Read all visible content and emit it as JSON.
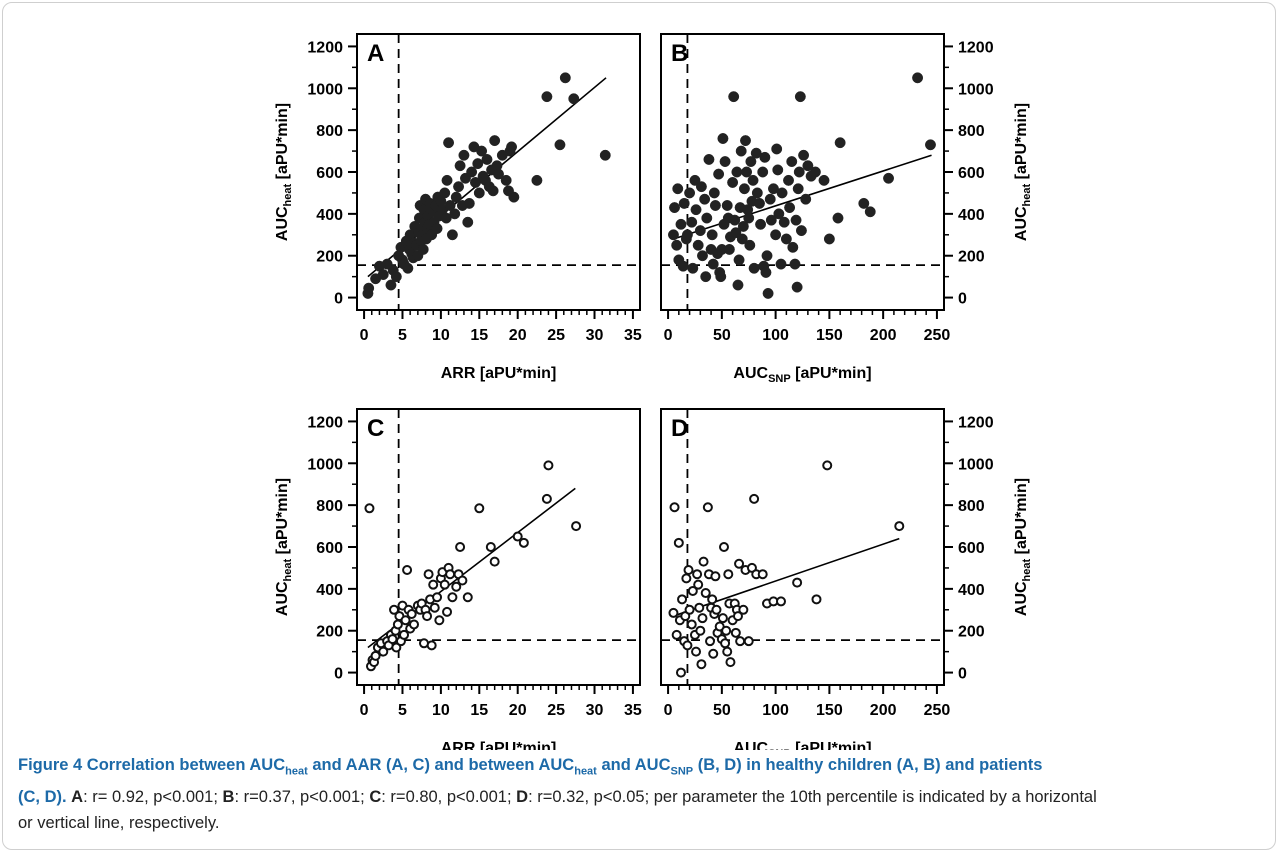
{
  "caption": {
    "figure_label": "Figure 4",
    "title_part1": "Correlation between AUC",
    "sub_heat": "heat",
    "title_part2": "and AAR (A, C) and between AUC",
    "sub_heat2": "heat",
    "title_part3": "and AUC",
    "sub_snp": "SNP",
    "title_part4": "(B, D) in healthy children (A, B) and patients",
    "title_part5": "(C, D).",
    "stat_a_label": "A",
    "stat_a": ": r= 0.92, p<0.001;",
    "stat_b_label": "B",
    "stat_b": ": r=0.37, p<0.001;",
    "stat_c_label": "C",
    "stat_c": ": r=0.80, p<0.001;",
    "stat_d_label": "D",
    "stat_d": ": r=0.32, p<0.05; per parameter the 10th percentile is indicated by a horizontal",
    "line3": "or vertical line, respectively."
  },
  "chart_data": [
    {
      "panel": "A",
      "type": "scatter",
      "marker": "filled",
      "xlabel": "ARR [aPU*min]",
      "ylabel": "AUC",
      "ylabel_sub": "heat",
      "ylabel_suffix": " [aPU*min]",
      "xlim": [
        0,
        35
      ],
      "ylim": [
        0,
        1200
      ],
      "xticks": [
        0,
        5,
        10,
        15,
        20,
        25,
        30,
        35
      ],
      "yticks": [
        0,
        200,
        400,
        600,
        800,
        1000,
        1200
      ],
      "ylabel_side": "left",
      "vline": 4.5,
      "hline": 155,
      "fit": [
        [
          0.5,
          100
        ],
        [
          31.5,
          1050
        ]
      ],
      "points": [
        [
          0.5,
          20
        ],
        [
          0.6,
          45
        ],
        [
          1.5,
          90
        ],
        [
          2,
          150
        ],
        [
          2.5,
          110
        ],
        [
          3,
          160
        ],
        [
          3.5,
          60
        ],
        [
          3.8,
          130
        ],
        [
          4.2,
          100
        ],
        [
          4.5,
          200
        ],
        [
          4.8,
          240
        ],
        [
          5,
          180
        ],
        [
          5.2,
          160
        ],
        [
          5.5,
          270
        ],
        [
          5.7,
          140
        ],
        [
          5.9,
          230
        ],
        [
          6,
          300
        ],
        [
          6.2,
          210
        ],
        [
          6.4,
          190
        ],
        [
          6.5,
          260
        ],
        [
          6.6,
          340
        ],
        [
          6.8,
          250
        ],
        [
          7,
          200
        ],
        [
          7.1,
          310
        ],
        [
          7.2,
          380
        ],
        [
          7.3,
          440
        ],
        [
          7.4,
          270
        ],
        [
          7.5,
          330
        ],
        [
          7.6,
          300
        ],
        [
          7.7,
          230
        ],
        [
          7.8,
          420
        ],
        [
          7.9,
          360
        ],
        [
          8,
          470
        ],
        [
          8.1,
          280
        ],
        [
          8.2,
          330
        ],
        [
          8.3,
          390
        ],
        [
          8.5,
          350
        ],
        [
          8.6,
          450
        ],
        [
          8.8,
          300
        ],
        [
          9,
          410
        ],
        [
          9.1,
          360
        ],
        [
          9.3,
          440
        ],
        [
          9.5,
          330
        ],
        [
          9.6,
          480
        ],
        [
          9.8,
          390
        ],
        [
          10,
          460
        ],
        [
          10.2,
          420
        ],
        [
          10.5,
          500
        ],
        [
          10.7,
          380
        ],
        [
          10.8,
          560
        ],
        [
          11,
          740
        ],
        [
          11.2,
          440
        ],
        [
          11.5,
          300
        ],
        [
          11.8,
          400
        ],
        [
          12,
          480
        ],
        [
          12.3,
          530
        ],
        [
          12.5,
          630
        ],
        [
          12.8,
          440
        ],
        [
          13,
          680
        ],
        [
          13.2,
          570
        ],
        [
          13.5,
          360
        ],
        [
          13.7,
          450
        ],
        [
          14,
          600
        ],
        [
          14.3,
          720
        ],
        [
          14.5,
          550
        ],
        [
          14.8,
          640
        ],
        [
          15,
          500
        ],
        [
          15.3,
          700
        ],
        [
          15.5,
          580
        ],
        [
          15.8,
          560
        ],
        [
          16,
          660
        ],
        [
          16.3,
          530
        ],
        [
          16.6,
          610
        ],
        [
          16.8,
          510
        ],
        [
          17,
          750
        ],
        [
          17.3,
          630
        ],
        [
          17.5,
          590
        ],
        [
          18,
          680
        ],
        [
          18.5,
          560
        ],
        [
          18.8,
          510
        ],
        [
          19,
          700
        ],
        [
          19.2,
          720
        ],
        [
          19.5,
          480
        ],
        [
          22.5,
          560
        ],
        [
          23.8,
          960
        ],
        [
          25.5,
          730
        ],
        [
          26.2,
          1050
        ],
        [
          27.3,
          950
        ],
        [
          31.4,
          680
        ]
      ]
    },
    {
      "panel": "B",
      "type": "scatter",
      "marker": "filled",
      "xlabel": "AUC",
      "xlabel_sub": "SNP",
      "xlabel_suffix": " [aPU*min]",
      "ylabel": "AUC",
      "ylabel_sub": "heat",
      "ylabel_suffix": " [aPU*min]",
      "xlim": [
        0,
        250
      ],
      "ylim": [
        0,
        1200
      ],
      "xticks": [
        0,
        50,
        100,
        150,
        200,
        250
      ],
      "yticks": [
        0,
        200,
        400,
        600,
        800,
        1000,
        1200
      ],
      "ylabel_side": "right",
      "vline": 18,
      "hline": 155,
      "fit": [
        [
          5,
          280
        ],
        [
          245,
          680
        ]
      ],
      "points": [
        [
          5,
          300
        ],
        [
          6,
          430
        ],
        [
          8,
          250
        ],
        [
          9,
          520
        ],
        [
          10,
          180
        ],
        [
          12,
          350
        ],
        [
          14,
          150
        ],
        [
          15,
          450
        ],
        [
          17,
          280
        ],
        [
          18,
          300
        ],
        [
          20,
          500
        ],
        [
          22,
          360
        ],
        [
          23,
          140
        ],
        [
          25,
          560
        ],
        [
          26,
          420
        ],
        [
          28,
          250
        ],
        [
          30,
          320
        ],
        [
          31,
          530
        ],
        [
          32,
          200
        ],
        [
          34,
          470
        ],
        [
          35,
          100
        ],
        [
          36,
          380
        ],
        [
          38,
          660
        ],
        [
          40,
          230
        ],
        [
          41,
          300
        ],
        [
          42,
          160
        ],
        [
          43,
          500
        ],
        [
          44,
          440
        ],
        [
          46,
          210
        ],
        [
          47,
          590
        ],
        [
          48,
          120
        ],
        [
          49,
          100
        ],
        [
          50,
          230
        ],
        [
          51,
          760
        ],
        [
          52,
          350
        ],
        [
          53,
          650
        ],
        [
          55,
          440
        ],
        [
          56,
          380
        ],
        [
          57,
          230
        ],
        [
          58,
          290
        ],
        [
          60,
          550
        ],
        [
          61,
          960
        ],
        [
          62,
          370
        ],
        [
          63,
          310
        ],
        [
          64,
          600
        ],
        [
          65,
          60
        ],
        [
          66,
          180
        ],
        [
          67,
          430
        ],
        [
          68,
          700
        ],
        [
          69,
          280
        ],
        [
          70,
          340
        ],
        [
          71,
          520
        ],
        [
          72,
          750
        ],
        [
          73,
          600
        ],
        [
          74,
          420
        ],
        [
          75,
          380
        ],
        [
          76,
          250
        ],
        [
          77,
          650
        ],
        [
          78,
          460
        ],
        [
          79,
          560
        ],
        [
          80,
          140
        ],
        [
          82,
          690
        ],
        [
          83,
          500
        ],
        [
          85,
          450
        ],
        [
          86,
          350
        ],
        [
          88,
          600
        ],
        [
          89,
          150
        ],
        [
          90,
          670
        ],
        [
          91,
          120
        ],
        [
          92,
          200
        ],
        [
          93,
          20
        ],
        [
          95,
          470
        ],
        [
          96,
          370
        ],
        [
          98,
          520
        ],
        [
          100,
          300
        ],
        [
          101,
          710
        ],
        [
          102,
          610
        ],
        [
          103,
          400
        ],
        [
          105,
          160
        ],
        [
          106,
          500
        ],
        [
          108,
          360
        ],
        [
          110,
          280
        ],
        [
          112,
          560
        ],
        [
          113,
          430
        ],
        [
          115,
          650
        ],
        [
          116,
          240
        ],
        [
          118,
          160
        ],
        [
          119,
          370
        ],
        [
          120,
          50
        ],
        [
          121,
          520
        ],
        [
          122,
          600
        ],
        [
          123,
          960
        ],
        [
          124,
          320
        ],
        [
          126,
          680
        ],
        [
          128,
          470
        ],
        [
          130,
          630
        ],
        [
          133,
          580
        ],
        [
          137,
          600
        ],
        [
          145,
          560
        ],
        [
          150,
          280
        ],
        [
          158,
          380
        ],
        [
          160,
          740
        ],
        [
          182,
          450
        ],
        [
          188,
          410
        ],
        [
          205,
          570
        ],
        [
          232,
          1050
        ],
        [
          244,
          730
        ]
      ]
    },
    {
      "panel": "C",
      "type": "scatter",
      "marker": "open",
      "xlabel": "ARR [aPU*min]",
      "ylabel": "AUC",
      "ylabel_sub": "heat",
      "ylabel_suffix": " [aPU*min]",
      "xlim": [
        0,
        35
      ],
      "ylim": [
        0,
        1200
      ],
      "xticks": [
        0,
        5,
        10,
        15,
        20,
        25,
        30,
        35
      ],
      "yticks": [
        0,
        200,
        400,
        600,
        800,
        1000,
        1200
      ],
      "ylabel_side": "left",
      "vline": 4.5,
      "hline": 155,
      "fit": [
        [
          0.5,
          120
        ],
        [
          27.5,
          880
        ]
      ],
      "points": [
        [
          0.7,
          785
        ],
        [
          0.9,
          30
        ],
        [
          1.1,
          60
        ],
        [
          1.3,
          50
        ],
        [
          1.5,
          80
        ],
        [
          1.8,
          120
        ],
        [
          2.2,
          140
        ],
        [
          2.5,
          100
        ],
        [
          3,
          150
        ],
        [
          3.2,
          130
        ],
        [
          3.5,
          180
        ],
        [
          3.7,
          160
        ],
        [
          3.9,
          300
        ],
        [
          4.1,
          200
        ],
        [
          4.2,
          120
        ],
        [
          4.4,
          230
        ],
        [
          4.6,
          270
        ],
        [
          4.8,
          150
        ],
        [
          5,
          320
        ],
        [
          5.2,
          180
        ],
        [
          5.4,
          250
        ],
        [
          5.6,
          490
        ],
        [
          5.8,
          300
        ],
        [
          6,
          210
        ],
        [
          6.2,
          280
        ],
        [
          6.5,
          230
        ],
        [
          7,
          320
        ],
        [
          7.3,
          300
        ],
        [
          7.5,
          330
        ],
        [
          7.8,
          140
        ],
        [
          8,
          300
        ],
        [
          8.2,
          270
        ],
        [
          8.4,
          470
        ],
        [
          8.6,
          350
        ],
        [
          8.8,
          130
        ],
        [
          9,
          420
        ],
        [
          9.2,
          310
        ],
        [
          9.5,
          360
        ],
        [
          9.8,
          250
        ],
        [
          10,
          450
        ],
        [
          10.2,
          480
        ],
        [
          10.5,
          420
        ],
        [
          10.8,
          290
        ],
        [
          11,
          500
        ],
        [
          11.2,
          470
        ],
        [
          11.5,
          360
        ],
        [
          12,
          410
        ],
        [
          12.3,
          470
        ],
        [
          12.5,
          600
        ],
        [
          12.8,
          440
        ],
        [
          13.5,
          360
        ],
        [
          15,
          785
        ],
        [
          16.5,
          600
        ],
        [
          17,
          530
        ],
        [
          20,
          650
        ],
        [
          20.8,
          620
        ],
        [
          23.8,
          830
        ],
        [
          24,
          990
        ],
        [
          27.6,
          700
        ]
      ]
    },
    {
      "panel": "D",
      "type": "scatter",
      "marker": "open",
      "xlabel": "AUC",
      "xlabel_sub": "SNP",
      "xlabel_suffix": " [aPU*min]",
      "ylabel": "AUC",
      "ylabel_sub": "heat",
      "ylabel_suffix": " [aPU*min]",
      "xlim": [
        0,
        250
      ],
      "ylim": [
        0,
        1200
      ],
      "xticks": [
        0,
        50,
        100,
        150,
        200,
        250
      ],
      "yticks": [
        0,
        200,
        400,
        600,
        800,
        1000,
        1200
      ],
      "ylabel_side": "right",
      "vline": 18,
      "hline": 155,
      "fit": [
        [
          5,
          270
        ],
        [
          215,
          640
        ]
      ],
      "points": [
        [
          5,
          285
        ],
        [
          6,
          790
        ],
        [
          8,
          180
        ],
        [
          10,
          620
        ],
        [
          11,
          250
        ],
        [
          12,
          0
        ],
        [
          13,
          350
        ],
        [
          15,
          150
        ],
        [
          16,
          270
        ],
        [
          17,
          450
        ],
        [
          18,
          130
        ],
        [
          19,
          490
        ],
        [
          20,
          300
        ],
        [
          22,
          230
        ],
        [
          23,
          390
        ],
        [
          25,
          180
        ],
        [
          26,
          100
        ],
        [
          27,
          470
        ],
        [
          28,
          420
        ],
        [
          29,
          310
        ],
        [
          30,
          200
        ],
        [
          31,
          40
        ],
        [
          32,
          260
        ],
        [
          33,
          530
        ],
        [
          35,
          380
        ],
        [
          37,
          790
        ],
        [
          38,
          470
        ],
        [
          39,
          150
        ],
        [
          40,
          310
        ],
        [
          41,
          350
        ],
        [
          42,
          90
        ],
        [
          43,
          280
        ],
        [
          44,
          460
        ],
        [
          45,
          300
        ],
        [
          46,
          190
        ],
        [
          48,
          220
        ],
        [
          50,
          160
        ],
        [
          51,
          260
        ],
        [
          52,
          600
        ],
        [
          53,
          140
        ],
        [
          54,
          200
        ],
        [
          55,
          100
        ],
        [
          56,
          470
        ],
        [
          57,
          330
        ],
        [
          58,
          50
        ],
        [
          60,
          250
        ],
        [
          62,
          330
        ],
        [
          63,
          190
        ],
        [
          64,
          300
        ],
        [
          65,
          270
        ],
        [
          66,
          520
        ],
        [
          67,
          150
        ],
        [
          70,
          300
        ],
        [
          72,
          490
        ],
        [
          75,
          150
        ],
        [
          78,
          500
        ],
        [
          80,
          830
        ],
        [
          82,
          470
        ],
        [
          88,
          470
        ],
        [
          92,
          330
        ],
        [
          98,
          340
        ],
        [
          105,
          340
        ],
        [
          120,
          430
        ],
        [
          138,
          350
        ],
        [
          148,
          990
        ],
        [
          215,
          700
        ]
      ]
    }
  ]
}
